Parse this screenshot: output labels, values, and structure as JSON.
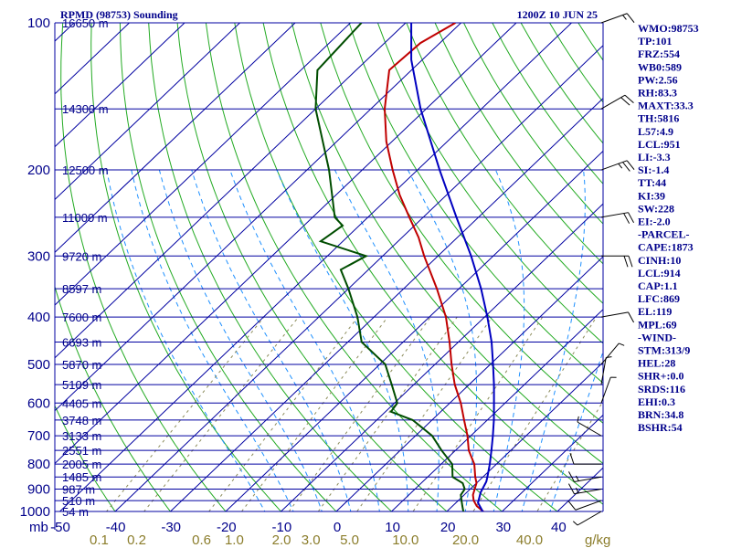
{
  "title_left": "RPMD (98753) Sounding",
  "title_right": "1200Z 10 JUN 25",
  "colors": {
    "isobar": "#0000a0",
    "isotherm": "#0000a0",
    "dry_adiabat": "#22aa22",
    "moist_adiabat": "#1e90ff",
    "mixing_ratio": "#8b8b5a",
    "temperature": "#c00000",
    "dewpoint": "#004d00",
    "parcel": "#0000c0",
    "label": "#00008b"
  },
  "chart_data": {
    "type": "line",
    "title": "RPMD (98753) Sounding",
    "subtitle": "1200Z 10 JUN 25",
    "xlabel": "",
    "ylabel": "mb",
    "axis_unit_label": "mb",
    "mixing_ratio_unit": "g/kg",
    "pressure_ticks": [
      100,
      200,
      300,
      400,
      500,
      600,
      700,
      800,
      900,
      1000
    ],
    "temperature_ticks": [
      -50,
      -40,
      -30,
      -20,
      -10,
      0,
      10,
      20,
      30,
      40
    ],
    "mixing_ratio_ticks": [
      {
        "label": "0.1",
        "value": 0.1
      },
      {
        "label": "0.2",
        "value": 0.2
      },
      {
        "label": "0.6",
        "value": 0.6
      },
      {
        "label": "1.0",
        "value": 1.0
      },
      {
        "label": "2.0",
        "value": 2.0
      },
      {
        "label": "3.0",
        "value": 3.0
      },
      {
        "label": "5.0",
        "value": 5.0
      },
      {
        "label": "10.0",
        "value": 10.0
      },
      {
        "label": "20.0",
        "value": 20.0
      },
      {
        "label": "40.0",
        "value": 40.0
      }
    ],
    "height_labels": [
      {
        "p": 100,
        "label": "16650 m"
      },
      {
        "p": 150,
        "label": "14300 m"
      },
      {
        "p": 200,
        "label": "12500 m"
      },
      {
        "p": 250,
        "label": "11000 m"
      },
      {
        "p": 300,
        "label": "9720 m"
      },
      {
        "p": 350,
        "label": "8597 m"
      },
      {
        "p": 400,
        "label": "7600 m"
      },
      {
        "p": 450,
        "label": "6693 m"
      },
      {
        "p": 500,
        "label": "5870 m"
      },
      {
        "p": 550,
        "label": "5109 m"
      },
      {
        "p": 600,
        "label": "4405 m"
      },
      {
        "p": 650,
        "label": "3748 m"
      },
      {
        "p": 700,
        "label": "3133 m"
      },
      {
        "p": 750,
        "label": "2551 m"
      },
      {
        "p": 800,
        "label": "2005 m"
      },
      {
        "p": 850,
        "label": "1485 m"
      },
      {
        "p": 900,
        "label": "987 m"
      },
      {
        "p": 950,
        "label": "510 m"
      },
      {
        "p": 1000,
        "label": "54 m"
      }
    ],
    "series": [
      {
        "name": "Temperature",
        "points": [
          [
            1005,
            27
          ],
          [
            1000,
            26.6
          ],
          [
            975,
            24.4
          ],
          [
            950,
            22.8
          ],
          [
            925,
            21.6
          ],
          [
            900,
            20.8
          ],
          [
            875,
            20.0
          ],
          [
            850,
            18.6
          ],
          [
            800,
            16.0
          ],
          [
            750,
            12.4
          ],
          [
            700,
            9.4
          ],
          [
            650,
            5.8
          ],
          [
            600,
            2.0
          ],
          [
            550,
            -2.6
          ],
          [
            500,
            -7.0
          ],
          [
            450,
            -11.6
          ],
          [
            400,
            -17.0
          ],
          [
            350,
            -24.0
          ],
          [
            300,
            -32.5
          ],
          [
            275,
            -37.0
          ],
          [
            250,
            -42.5
          ],
          [
            225,
            -48.5
          ],
          [
            200,
            -54.5
          ],
          [
            175,
            -61.0
          ],
          [
            150,
            -67.5
          ],
          [
            125,
            -74.0
          ],
          [
            110,
            -73.5
          ],
          [
            100,
            -71.0
          ]
        ]
      },
      {
        "name": "Dewpoint",
        "points": [
          [
            1005,
            23.5
          ],
          [
            1000,
            23.0
          ],
          [
            975,
            21.8
          ],
          [
            950,
            20.6
          ],
          [
            925,
            19.4
          ],
          [
            900,
            19.0
          ],
          [
            875,
            17.5
          ],
          [
            850,
            14.5
          ],
          [
            800,
            12.0
          ],
          [
            750,
            7.5
          ],
          [
            700,
            3.0
          ],
          [
            650,
            -3.5
          ],
          [
            625,
            -9.0
          ],
          [
            600,
            -9.5
          ],
          [
            550,
            -14.0
          ],
          [
            500,
            -19.0
          ],
          [
            450,
            -27.5
          ],
          [
            400,
            -33.0
          ],
          [
            350,
            -40.0
          ],
          [
            320,
            -45.0
          ],
          [
            300,
            -43.0
          ],
          [
            280,
            -54.0
          ],
          [
            260,
            -53.0
          ],
          [
            250,
            -56.0
          ],
          [
            200,
            -66.0
          ],
          [
            150,
            -80.0
          ],
          [
            125,
            -87.0
          ],
          [
            100,
            -88.0
          ]
        ]
      },
      {
        "name": "Parcel",
        "points": [
          [
            1005,
            27
          ],
          [
            1000,
            26.5
          ],
          [
            960,
            24.0
          ],
          [
            914,
            22.5
          ],
          [
            869,
            21.5
          ],
          [
            850,
            20.8
          ],
          [
            800,
            18.8
          ],
          [
            750,
            16.5
          ],
          [
            700,
            14.0
          ],
          [
            650,
            11.2
          ],
          [
            600,
            8.0
          ],
          [
            550,
            4.5
          ],
          [
            500,
            0.5
          ],
          [
            450,
            -4.0
          ],
          [
            400,
            -9.5
          ],
          [
            350,
            -16.0
          ],
          [
            300,
            -24.0
          ],
          [
            250,
            -34.0
          ],
          [
            200,
            -46.0
          ],
          [
            150,
            -61.0
          ],
          [
            119,
            -72.0
          ],
          [
            100,
            -79.0
          ]
        ]
      }
    ]
  },
  "indices": [
    "WMO:98753",
    "TP:101",
    "FRZ:554",
    "WB0:589",
    "PW:2.56",
    "RH:83.3",
    "MAXT:33.3",
    "TH:5816",
    "L57:4.9",
    "LCL:951",
    "LI:-3.3",
    "SI:-1.4",
    "TT:44",
    "KI:39",
    "SW:228",
    "EI:-2.0",
    "-PARCEL-",
    "CAPE:1873",
    "CINH:10",
    "LCL:914",
    "CAP:1.1",
    "LFC:869",
    "EL:119",
    "MPL:69",
    "-WIND-",
    "STM:313/9",
    "HEL:28",
    "SHR+:0.0",
    "SRDS:116",
    "EHI:0.3",
    "BRN:34.8",
    "BSHR:54"
  ],
  "winds": [
    {
      "p": 1000,
      "dir": 240,
      "spd": 5
    },
    {
      "p": 950,
      "dir": 250,
      "spd": 10
    },
    {
      "p": 900,
      "dir": 260,
      "spd": 15
    },
    {
      "p": 850,
      "dir": 260,
      "spd": 15
    },
    {
      "p": 800,
      "dir": 270,
      "spd": 10
    },
    {
      "p": 700,
      "dir": 300,
      "spd": 5
    },
    {
      "p": 600,
      "dir": 20,
      "spd": 5
    },
    {
      "p": 550,
      "dir": 10,
      "spd": 5
    },
    {
      "p": 500,
      "dir": 40,
      "spd": 5
    },
    {
      "p": 400,
      "dir": 80,
      "spd": 10
    },
    {
      "p": 300,
      "dir": 90,
      "spd": 20
    },
    {
      "p": 250,
      "dir": 80,
      "spd": 20
    },
    {
      "p": 200,
      "dir": 70,
      "spd": 25
    },
    {
      "p": 150,
      "dir": 60,
      "spd": 20
    },
    {
      "p": 100,
      "dir": 70,
      "spd": 15
    }
  ]
}
